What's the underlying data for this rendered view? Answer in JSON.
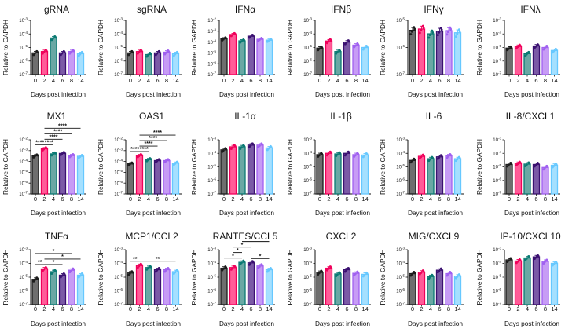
{
  "colors": {
    "fills": [
      "#6e6e6e",
      "#ff5c98",
      "#6aa8a4",
      "#7b5aa6",
      "#c79cf5",
      "#a5e0ff"
    ],
    "strokes": [
      "#1c1c1c",
      "#f0005a",
      "#0a7a73",
      "#3a1070",
      "#a060f0",
      "#66c8ff"
    ]
  },
  "chart_data": [
    {
      "type": "bar",
      "title": "gRNA",
      "categories": [
        "0",
        "2",
        "4",
        "6",
        "8",
        "14"
      ],
      "values": [
        4e-06,
        5e-06,
        5e-05,
        4e-06,
        5e-06,
        3.5e-06
      ],
      "yscale": "log",
      "ylim": [
        1e-07,
        0.001
      ],
      "xlabel": "Days post infection",
      "ylabel": "Relative to GAPDH",
      "significance": []
    },
    {
      "type": "bar",
      "title": "sgRNA",
      "categories": [
        "0",
        "2",
        "4",
        "6",
        "8",
        "14"
      ],
      "values": [
        4e-06,
        5e-06,
        3e-06,
        4e-06,
        4.5e-06,
        3.5e-06
      ],
      "yscale": "log",
      "ylim": [
        1e-07,
        0.001
      ],
      "xlabel": "Days post infection",
      "ylabel": "Relative to GAPDH",
      "significance": []
    },
    {
      "type": "bar",
      "title": "IFNα",
      "categories": [
        "0",
        "2",
        "4",
        "6",
        "8",
        "14"
      ],
      "values": [
        0.0002,
        0.0005,
        0.00013,
        0.00035,
        0.00018,
        0.00015
      ],
      "yscale": "log",
      "ylim": [
        1e-07,
        0.01
      ],
      "xlabel": "Days post infection",
      "ylabel": "Relative to GAPDH",
      "significance": []
    },
    {
      "type": "bar",
      "title": "IFNβ",
      "categories": [
        "0",
        "2",
        "4",
        "6",
        "8",
        "14"
      ],
      "values": [
        9e-06,
        3e-05,
        5e-06,
        2.5e-05,
        1.5e-05,
        1e-05
      ],
      "yscale": "log",
      "ylim": [
        1e-07,
        0.001
      ],
      "xlabel": "Days post infection",
      "ylabel": "Relative to GAPDH",
      "significance": []
    },
    {
      "type": "bar",
      "title": "IFNγ",
      "categories": [
        "0",
        "2",
        "4",
        "6",
        "8",
        "14"
      ],
      "values": [
        4.3e-06,
        4.8e-06,
        3.2e-06,
        4e-06,
        4.2e-06,
        3.5e-06
      ],
      "yscale": "log",
      "ylim": [
        1e-07,
        1e-05
      ],
      "xlabel": "Days post infection",
      "ylabel": "Relative to GAPDH",
      "significance": []
    },
    {
      "type": "bar",
      "title": "IFNλ",
      "categories": [
        "0",
        "2",
        "4",
        "6",
        "8",
        "14"
      ],
      "values": [
        9e-06,
        1.2e-05,
        3.5e-06,
        1.3e-05,
        1e-05,
        6e-06
      ],
      "yscale": "log",
      "ylim": [
        1e-07,
        0.001
      ],
      "xlabel": "Days post infection",
      "ylabel": "Relative to GAPDH",
      "significance": []
    },
    {
      "type": "bar",
      "title": "MX1",
      "categories": [
        "0",
        "2",
        "4",
        "6",
        "8",
        "14"
      ],
      "values": [
        0.00033,
        0.0015,
        0.0005,
        0.00055,
        0.00035,
        0.0003
      ],
      "yscale": "log",
      "ylim": [
        1e-07,
        0.01
      ],
      "xlabel": "Days post infection",
      "ylabel": "Relative to GAPDH",
      "significance": [
        {
          "from": "0",
          "to": "2",
          "label": "****"
        },
        {
          "from": "2",
          "to": "4",
          "label": "****"
        },
        {
          "from": "2",
          "to": "6",
          "label": "****"
        },
        {
          "from": "2",
          "to": "8",
          "label": "****"
        },
        {
          "from": "2",
          "to": "14",
          "label": "****"
        }
      ]
    },
    {
      "type": "bar",
      "title": "OAS1",
      "categories": [
        "0",
        "2",
        "4",
        "6",
        "8",
        "14"
      ],
      "values": [
        6e-05,
        0.00035,
        0.00015,
        0.00012,
        0.00012,
        7e-05
      ],
      "yscale": "log",
      "ylim": [
        1e-07,
        0.01
      ],
      "xlabel": "Days post infection",
      "ylabel": "Relative to GAPDH",
      "significance": [
        {
          "from": "0",
          "to": "2",
          "label": "****"
        },
        {
          "from": "2",
          "to": "4",
          "label": "****"
        },
        {
          "from": "2",
          "to": "6",
          "label": "****"
        },
        {
          "from": "2",
          "to": "8",
          "label": "****"
        },
        {
          "from": "2",
          "to": "14",
          "label": "****"
        }
      ]
    },
    {
      "type": "bar",
      "title": "IL-1α",
      "categories": [
        "0",
        "2",
        "4",
        "6",
        "8",
        "14"
      ],
      "values": [
        0.00018,
        0.0003,
        0.0003,
        0.0004,
        0.0004,
        0.00025
      ],
      "yscale": "log",
      "ylim": [
        1e-07,
        0.001
      ],
      "xlabel": "Days post infection",
      "ylabel": "Relative to GAPDH",
      "significance": []
    },
    {
      "type": "bar",
      "title": "IL-1β",
      "categories": [
        "0",
        "2",
        "4",
        "6",
        "8",
        "14"
      ],
      "values": [
        8e-05,
        0.0001,
        9e-05,
        0.0001,
        8e-05,
        7.5e-05
      ],
      "yscale": "log",
      "ylim": [
        1e-07,
        0.001
      ],
      "xlabel": "Days post infection",
      "ylabel": "Relative to GAPDH",
      "significance": []
    },
    {
      "type": "bar",
      "title": "IL-6",
      "categories": [
        "0",
        "2",
        "4",
        "6",
        "8",
        "14"
      ],
      "values": [
        3e-05,
        6e-05,
        4e-05,
        5.5e-05,
        6.5e-05,
        4e-05
      ],
      "yscale": "log",
      "ylim": [
        1e-07,
        0.001
      ],
      "xlabel": "Days post infection",
      "ylabel": "Relative to GAPDH",
      "significance": []
    },
    {
      "type": "bar",
      "title": "IL-8/CXCL1",
      "categories": [
        "0",
        "2",
        "4",
        "6",
        "8",
        "14"
      ],
      "values": [
        1.5e-05,
        1.8e-05,
        1.6e-05,
        1.5e-05,
        9e-06,
        1.3e-05
      ],
      "yscale": "log",
      "ylim": [
        1e-07,
        0.001
      ],
      "xlabel": "Days post infection",
      "ylabel": "Relative to GAPDH",
      "significance": []
    },
    {
      "type": "bar",
      "title": "TNFα",
      "categories": [
        "0",
        "2",
        "4",
        "6",
        "8",
        "14"
      ],
      "values": [
        7e-06,
        4e-05,
        2.5e-05,
        1.4e-05,
        3.2e-05,
        1.4e-05
      ],
      "yscale": "log",
      "ylim": [
        1e-07,
        0.001
      ],
      "xlabel": "Days post infection",
      "ylabel": "Relative to GAPDH",
      "significance": [
        {
          "from": "0",
          "to": "2",
          "label": "**"
        },
        {
          "from": "2",
          "to": "6",
          "label": "*"
        },
        {
          "from": "2",
          "to": "14",
          "label": "*"
        },
        {
          "from": "0",
          "to": "8",
          "label": "*"
        }
      ]
    },
    {
      "type": "bar",
      "title": "MCP1/CCL2",
      "categories": [
        "0",
        "2",
        "4",
        "6",
        "8",
        "14"
      ],
      "values": [
        2e-05,
        7e-05,
        5e-05,
        3.5e-05,
        3.5e-05,
        2.5e-05
      ],
      "yscale": "log",
      "ylim": [
        1e-07,
        0.001
      ],
      "xlabel": "Days post infection",
      "ylabel": "Relative to GAPDH",
      "significance": [
        {
          "from": "0",
          "to": "2",
          "label": "**"
        },
        {
          "from": "2",
          "to": "14",
          "label": "**"
        }
      ]
    },
    {
      "type": "bar",
      "title": "RANTES/CCL5",
      "categories": [
        "0",
        "2",
        "4",
        "6",
        "8",
        "14"
      ],
      "values": [
        4.5e-05,
        5e-05,
        0.00012,
        0.00011,
        6.5e-05,
        3.5e-05
      ],
      "yscale": "log",
      "ylim": [
        1e-07,
        0.001
      ],
      "xlabel": "Days post infection",
      "ylabel": "Relative to GAPDH",
      "significance": [
        {
          "from": "0",
          "to": "4",
          "label": "*"
        },
        {
          "from": "6",
          "to": "14",
          "label": "*"
        },
        {
          "from": "2",
          "to": "4",
          "label": "*"
        },
        {
          "from": "2",
          "to": "6",
          "label": "*"
        },
        {
          "from": "4",
          "to": "14",
          "label": "*"
        }
      ]
    },
    {
      "type": "bar",
      "title": "CXCL2",
      "categories": [
        "0",
        "2",
        "4",
        "6",
        "8",
        "14"
      ],
      "values": [
        2.2e-05,
        4.5e-05,
        1.7e-05,
        3.5e-05,
        1.9e-05,
        1.6e-05
      ],
      "yscale": "log",
      "ylim": [
        1e-07,
        0.001
      ],
      "xlabel": "Days post infection",
      "ylabel": "Relative to GAPDH",
      "significance": []
    },
    {
      "type": "bar",
      "title": "MIG/CXCL9",
      "categories": [
        "0",
        "2",
        "4",
        "6",
        "8",
        "14"
      ],
      "values": [
        1.8e-05,
        2.3e-05,
        1.1e-05,
        3.2e-05,
        1.8e-05,
        1.2e-05
      ],
      "yscale": "log",
      "ylim": [
        1e-07,
        0.001
      ],
      "xlabel": "Days post infection",
      "ylabel": "Relative to GAPDH",
      "significance": []
    },
    {
      "type": "bar",
      "title": "IP-10/CXCL10",
      "categories": [
        "0",
        "2",
        "4",
        "6",
        "8",
        "14"
      ],
      "values": [
        0.00018,
        0.00015,
        0.00025,
        0.0003,
        0.00014,
        0.0001
      ],
      "yscale": "log",
      "ylim": [
        1e-07,
        0.001
      ],
      "xlabel": "Days post infection",
      "ylabel": "Relative to GAPDH",
      "significance": []
    }
  ]
}
